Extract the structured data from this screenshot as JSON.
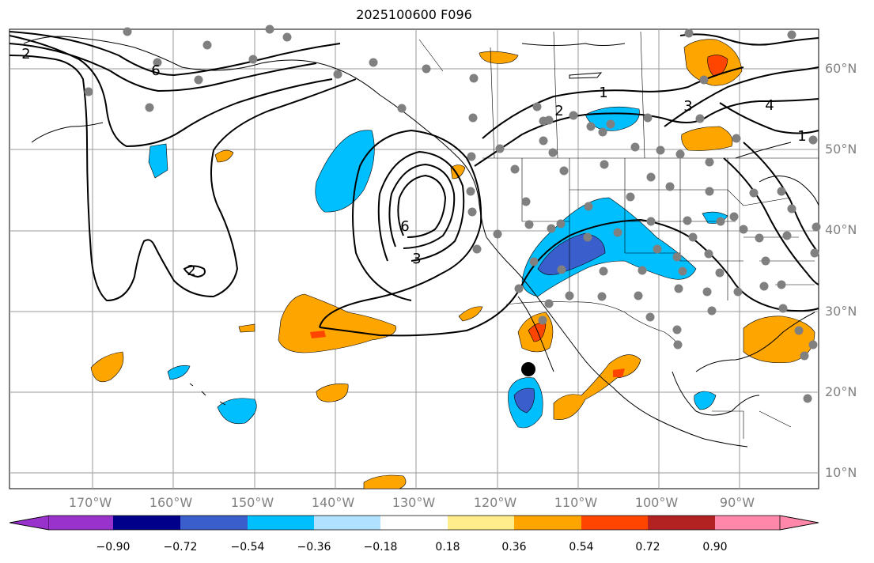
{
  "title": "2025100600 F096",
  "lat_labels": [
    "60°N",
    "50°N",
    "40°N",
    "30°N",
    "20°N",
    "10°N"
  ],
  "lon_labels": [
    "170°W",
    "160°W",
    "150°W",
    "140°W",
    "130°W",
    "120°W",
    "110°W",
    "100°W",
    "90°W"
  ],
  "contour_labels": [
    "2",
    "6",
    "1",
    "2",
    "3",
    "4",
    "1",
    "6",
    "3",
    "2"
  ],
  "colorbar": {
    "ticks": [
      "−0.90",
      "−0.72",
      "−0.54",
      "−0.36",
      "−0.18",
      "0.18",
      "0.36",
      "0.54",
      "0.72",
      "0.90"
    ],
    "colors": [
      "#9932cc",
      "#00008b",
      "#3a5fcd",
      "#00bfff",
      "#b0e2ff",
      "#ffffff",
      "#ffec8b",
      "#ffa500",
      "#ff4500",
      "#b22222",
      "#ff88aa"
    ]
  },
  "colors": {
    "pos_shade": "#ffa500",
    "pos_strong": "#ff4500",
    "neg_shade": "#00bfff",
    "neg_strong": "#3a5fcd",
    "station": "#808080",
    "grid": "#9a9a9a"
  }
}
